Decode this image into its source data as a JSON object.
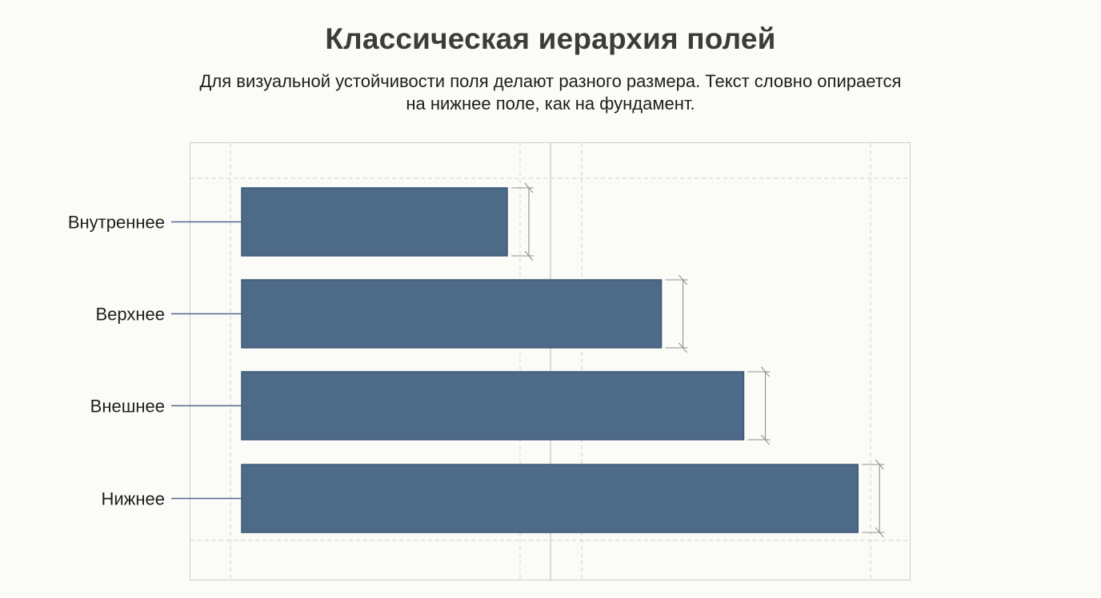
{
  "header": {
    "title": "Классическая иерархия полей",
    "subtitle_line1": "Для визуальной устойчивости поля делают разного размера. Текст словно опирается",
    "subtitle_line2": "на нижнее поле, как на фундамент."
  },
  "chart_data": {
    "type": "bar",
    "orientation": "horizontal",
    "categories": [
      "Внутреннее",
      "Верхнее",
      "Внешнее",
      "Нижнее"
    ],
    "values": [
      1,
      1.58,
      1.89,
      2.32
    ],
    "title": "Классическая иерархия полей",
    "xlabel": "",
    "ylabel": "",
    "grid": true,
    "legend": "none"
  },
  "colors": {
    "bar": "#4d6a89",
    "bar_stroke": "#3e5875",
    "frame": "#cfcfcb",
    "guide": "#d2d2cc",
    "leader": "#4d6a89",
    "dimension": "#909090"
  }
}
